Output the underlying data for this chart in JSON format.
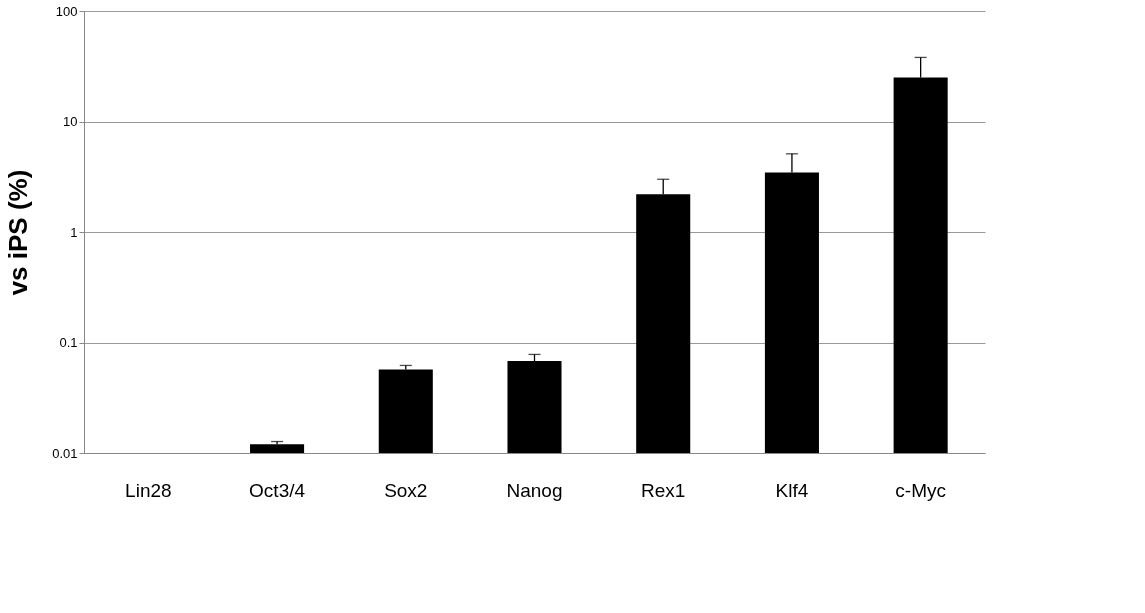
{
  "chart_data": {
    "type": "bar",
    "ylabel": "vs iPS (%)",
    "categories": [
      "Lin28",
      "Oct3/4",
      "Sox2",
      "Nanog",
      "Rex1",
      "Klf4",
      "c-Myc"
    ],
    "values": [
      null,
      0.012,
      0.057,
      0.068,
      2.2,
      3.45,
      25
    ],
    "errors": [
      null,
      [
        0.012,
        0.0127
      ],
      [
        0.057,
        0.062
      ],
      [
        0.068,
        0.078
      ],
      [
        2.2,
        3.0
      ],
      [
        3.45,
        5.1
      ],
      [
        25,
        38
      ]
    ],
    "color": "#000000",
    "log": true,
    "ylim": [
      0.01,
      100
    ],
    "yticks": [
      0.01,
      0.1,
      1,
      10,
      100
    ],
    "grid": "y"
  }
}
